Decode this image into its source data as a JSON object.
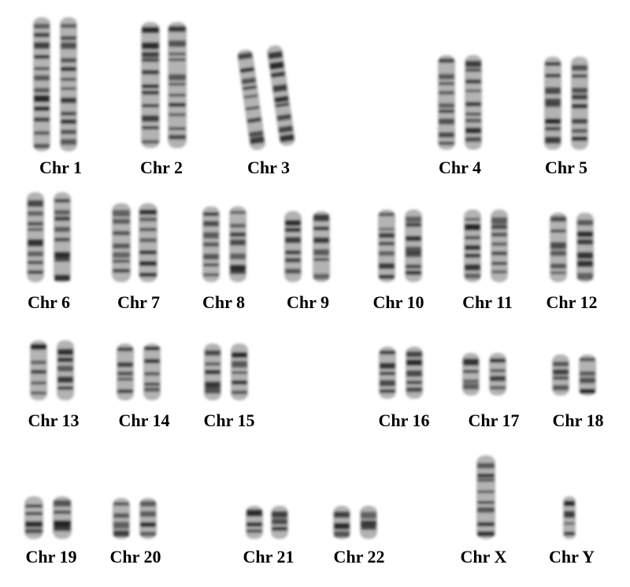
{
  "karyotype": {
    "chromosomes": [
      {
        "id": "1",
        "label": "Chr 1"
      },
      {
        "id": "2",
        "label": "Chr 2"
      },
      {
        "id": "3",
        "label": "Chr 3"
      },
      {
        "id": "4",
        "label": "Chr 4"
      },
      {
        "id": "5",
        "label": "Chr 5"
      },
      {
        "id": "6",
        "label": "Chr 6"
      },
      {
        "id": "7",
        "label": "Chr 7"
      },
      {
        "id": "8",
        "label": "Chr 8"
      },
      {
        "id": "9",
        "label": "Chr 9"
      },
      {
        "id": "10",
        "label": "Chr 10"
      },
      {
        "id": "11",
        "label": "Chr 11"
      },
      {
        "id": "12",
        "label": "Chr 12"
      },
      {
        "id": "13",
        "label": "Chr 13"
      },
      {
        "id": "14",
        "label": "Chr 14"
      },
      {
        "id": "15",
        "label": "Chr 15"
      },
      {
        "id": "16",
        "label": "Chr 16"
      },
      {
        "id": "17",
        "label": "Chr 17"
      },
      {
        "id": "18",
        "label": "Chr 18"
      },
      {
        "id": "19",
        "label": "Chr 19"
      },
      {
        "id": "20",
        "label": "Chr 20"
      },
      {
        "id": "21",
        "label": "Chr 21"
      },
      {
        "id": "22",
        "label": "Chr 22"
      },
      {
        "id": "X",
        "label": "Chr X"
      },
      {
        "id": "Y",
        "label": "Chr Y"
      }
    ],
    "colors": {
      "background": "#ffffff",
      "chromosome_body": "#9a9a9a",
      "band": "#1e1e1e",
      "label": "#000000"
    }
  }
}
